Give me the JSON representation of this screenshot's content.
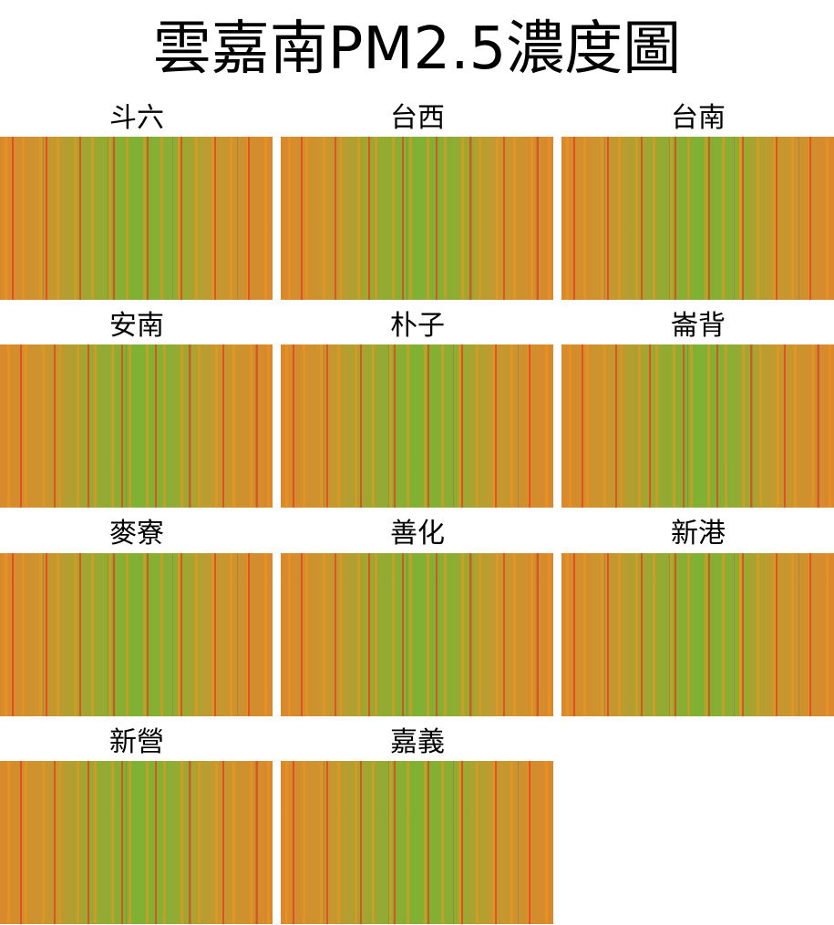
{
  "title": "雲嘉南PM2.5濃度圖",
  "panels": [
    {
      "label": "斗六"
    },
    {
      "label": "台西"
    },
    {
      "label": "台南"
    },
    {
      "label": "安南"
    },
    {
      "label": "朴子"
    },
    {
      "label": "崙背"
    },
    {
      "label": "麥寮"
    },
    {
      "label": "善化"
    },
    {
      "label": "新港"
    },
    {
      "label": "新營"
    },
    {
      "label": "嘉義"
    }
  ]
}
